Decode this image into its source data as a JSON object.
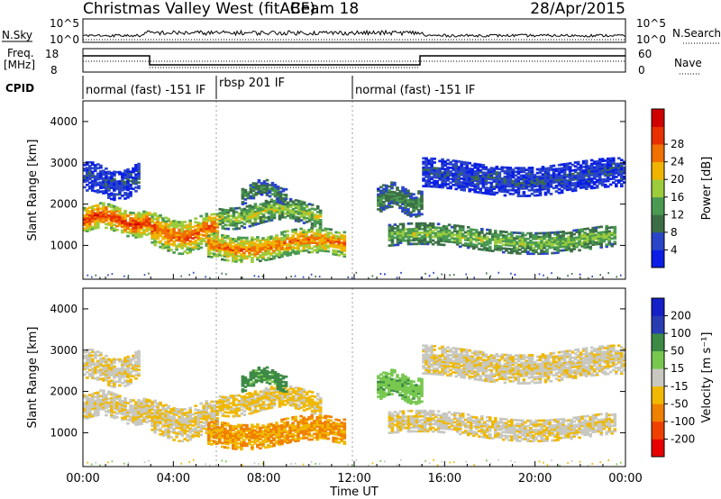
{
  "header": {
    "station": "Christmas Valley West (fitACF)",
    "beam": "Beam 18",
    "date": "28/Apr/2015"
  },
  "time_axis": {
    "label": "Time UT",
    "ticks": [
      "00:00",
      "04:00",
      "08:00",
      "12:00",
      "16:00",
      "20:00",
      "00:00"
    ]
  },
  "top_strips": {
    "nsky_label": "N.Sky",
    "nsearch_label": "N.Search",
    "nsky_ticks": [
      "10^5",
      "10^0"
    ],
    "nsearch_ticks": [
      "10^5",
      "10^0"
    ],
    "freq_label_1": "Freq.",
    "freq_label_2": "[MHz]",
    "freq_ticks": [
      "18",
      "8"
    ],
    "nave_label": "Nave",
    "nave_ticks": [
      "60",
      "0"
    ],
    "cpid_label": "CPID"
  },
  "cpid_segments": [
    {
      "label": "normal (fast) -151 IF",
      "start_hr": 0,
      "end_hr": 6
    },
    {
      "label": "rbsp 201 IF",
      "start_hr": 6,
      "end_hr": 12
    },
    {
      "label": "normal (fast) -151 IF",
      "start_hr": 12,
      "end_hr": 24
    }
  ],
  "power_panel": {
    "ylabel": "Slant Range [km]",
    "yticks": [
      "1000",
      "2000",
      "3000",
      "4000"
    ],
    "cbar_label": "Power [dB]",
    "cbar_ticks": [
      "4",
      "8",
      "12",
      "16",
      "20",
      "24",
      "28"
    ]
  },
  "velocity_panel": {
    "ylabel": "Slant Range [km]",
    "yticks": [
      "1000",
      "2000",
      "3000",
      "4000"
    ],
    "cbar_label": "Velocity [m s⁻¹]",
    "cbar_ticks": [
      "-200",
      "-100",
      "-50",
      "-15",
      "15",
      "50",
      "100",
      "200"
    ]
  },
  "colors": {
    "power_scale": [
      "#0a1ee6",
      "#2a45c8",
      "#3c6e46",
      "#4a9a52",
      "#9ccc3c",
      "#f0b400",
      "#f07000",
      "#e83000",
      "#d00000"
    ],
    "velocity_scale": [
      "#e80000",
      "#f04000",
      "#f08000",
      "#f0b800",
      "#c8c8c0",
      "#78c850",
      "#3c8a46",
      "#2a3cb4",
      "#1420c8"
    ]
  },
  "chart_data": {
    "type": "heatmap",
    "title": "Christmas Valley West (fitACF) Beam 18 28/Apr/2015",
    "xlabel": "Time UT",
    "x_range_hours": [
      0,
      24
    ],
    "y_range_km": [
      180,
      4500
    ],
    "panels": [
      "Power [dB]",
      "Velocity [m s⁻¹]"
    ],
    "power_range_db": [
      0,
      30
    ],
    "velocity_range": [
      -250,
      250
    ],
    "frequency_mhz": [
      {
        "start_hr": 0,
        "end_hr": 3,
        "value": 15.5
      },
      {
        "start_hr": 3,
        "end_hr": 15,
        "value": 10.5
      },
      {
        "start_hr": 15,
        "end_hr": 24,
        "value": 15.5
      }
    ],
    "echo_regions": [
      {
        "t0": 0.0,
        "t1": 3.0,
        "r0": 1300,
        "r1": 1900,
        "power": 24,
        "velocity": -10
      },
      {
        "t0": 0.0,
        "t1": 2.5,
        "r0": 2200,
        "r1": 2900,
        "power": 5,
        "velocity": -10
      },
      {
        "t0": 3.0,
        "t1": 6.0,
        "r0": 900,
        "r1": 1700,
        "power": 22,
        "velocity": -15
      },
      {
        "t0": 5.5,
        "t1": 11.5,
        "r0": 700,
        "r1": 1300,
        "power": 21,
        "velocity": -50
      },
      {
        "t0": 6.0,
        "t1": 10.5,
        "r0": 1500,
        "r1": 2000,
        "power": 15,
        "velocity": -20
      },
      {
        "t0": 7.0,
        "t1": 9.0,
        "r0": 2100,
        "r1": 2500,
        "power": 10,
        "velocity": 60
      },
      {
        "t0": 13.0,
        "t1": 15.0,
        "r0": 1800,
        "r1": 2400,
        "power": 10,
        "velocity": 40
      },
      {
        "t0": 13.5,
        "t1": 23.5,
        "r0": 900,
        "r1": 1400,
        "power": 14,
        "velocity": -10
      },
      {
        "t0": 15.0,
        "t1": 24.0,
        "r0": 2300,
        "r1": 3000,
        "power": 5,
        "velocity": -10
      }
    ]
  }
}
